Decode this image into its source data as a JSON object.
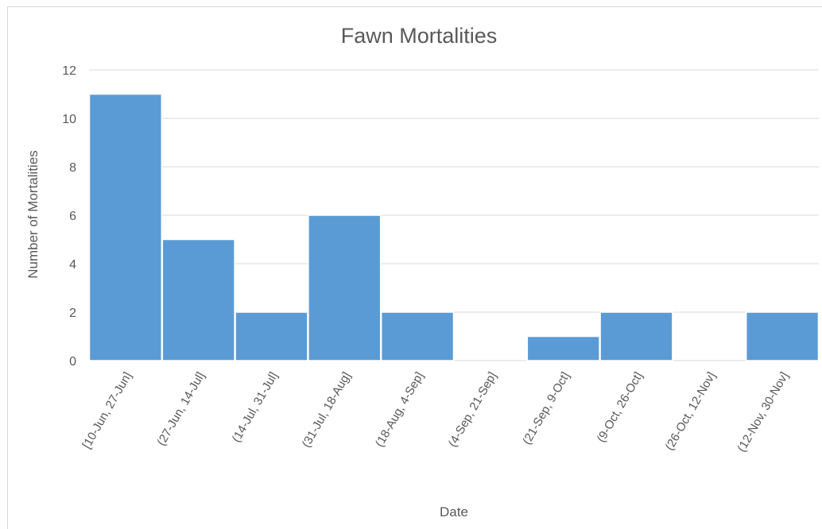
{
  "chart_data": {
    "type": "bar",
    "title": "Fawn Mortalities",
    "xlabel": "Date",
    "ylabel": "Number of Mortalities",
    "categories": [
      "[10-Jun, 27-Jun]",
      "(27-Jun, 14-Jul]",
      "(14-Jul, 31-Jul]",
      "(31-Jul, 18-Aug]",
      "(18-Aug, 4-Sep]",
      "(4-Sep, 21-Sep]",
      "(21-Sep, 9-Oct]",
      "(9-Oct, 26-Oct]",
      "(26-Oct, 12-Nov]",
      "(12-Nov, 30-Nov]"
    ],
    "values": [
      11,
      5,
      2,
      6,
      2,
      0,
      1,
      2,
      0,
      2
    ],
    "ylim": [
      0,
      12
    ],
    "yticks": [
      0,
      2,
      4,
      6,
      8,
      10,
      12
    ],
    "grid": true,
    "legend": "none",
    "bar_color": "#5B9BD5"
  }
}
